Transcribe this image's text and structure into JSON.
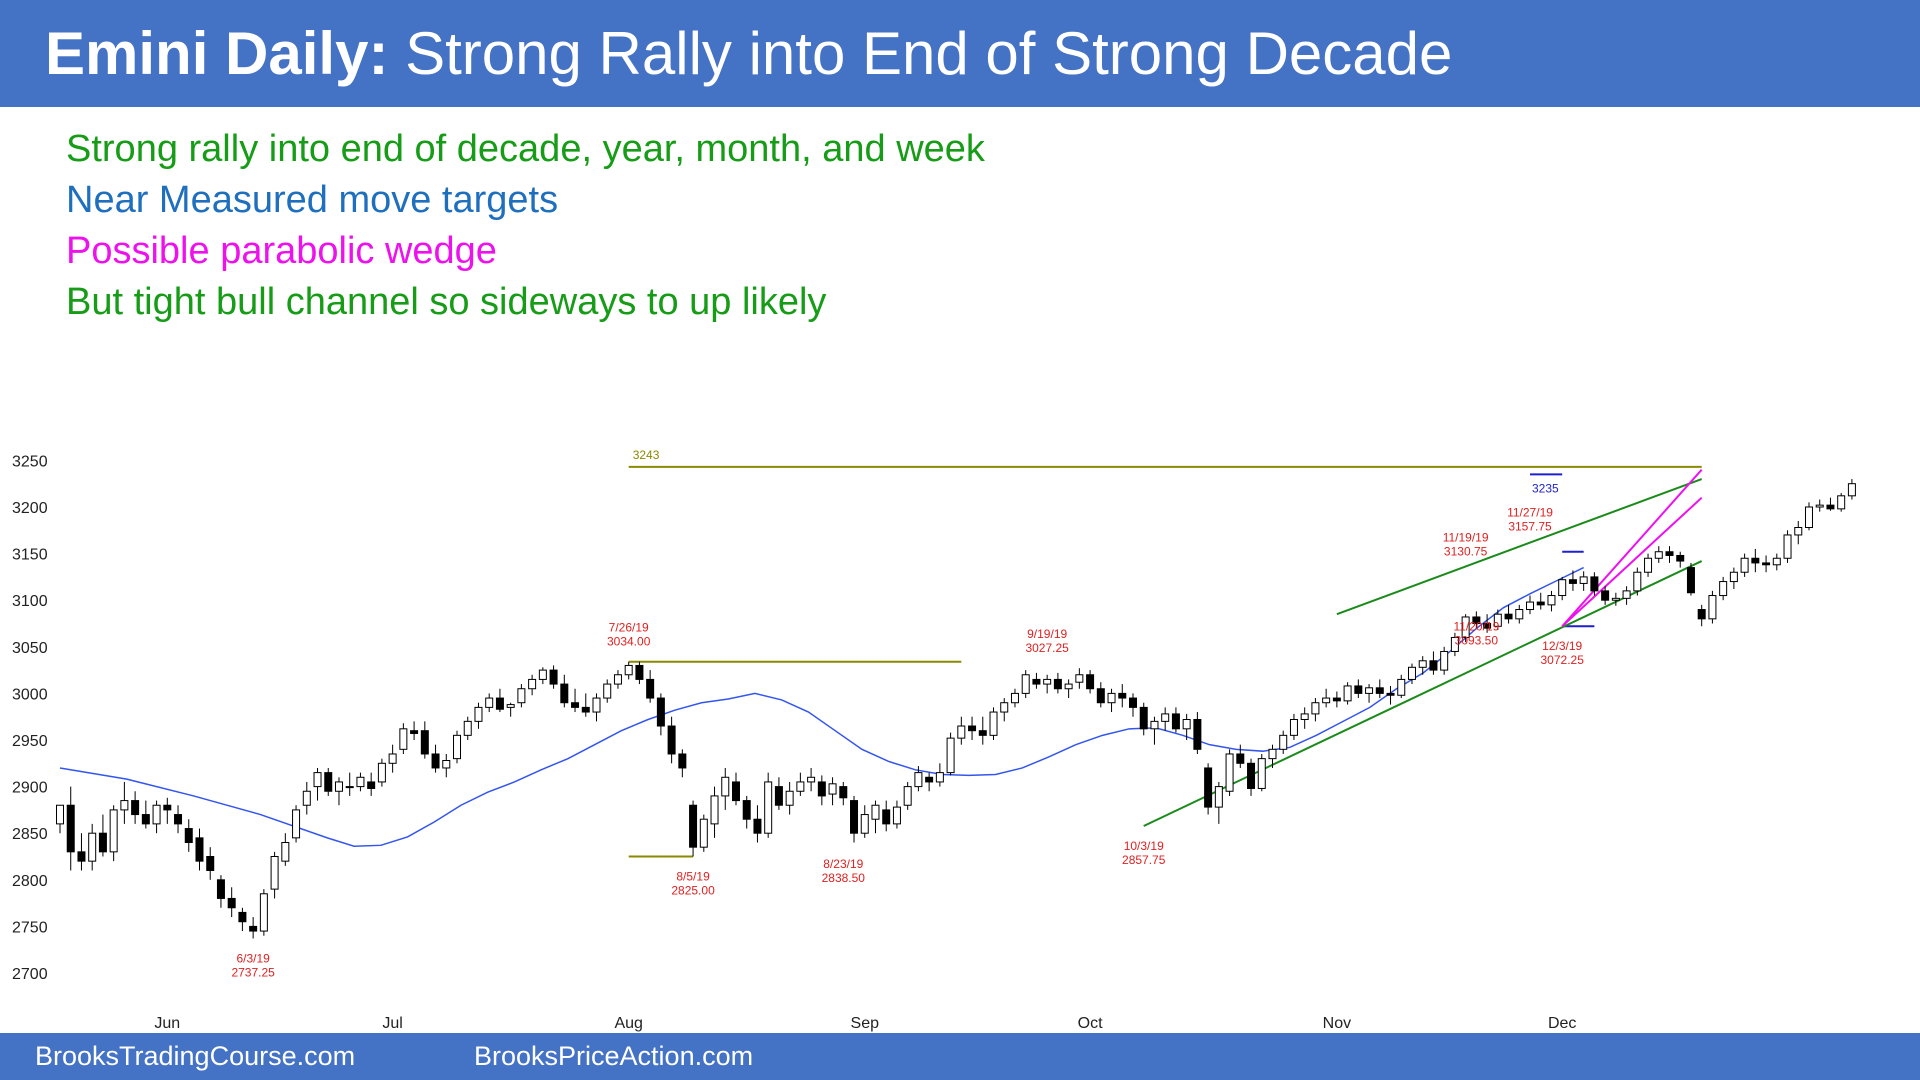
{
  "header": {
    "title_bold": "Emini Daily:",
    "title_rest": "Strong Rally into End of Strong Decade"
  },
  "bullets": [
    {
      "text": "Strong rally into end of decade, year, month, and week",
      "color": "#169c16"
    },
    {
      "text": "Near Measured move targets",
      "color": "#1f6fbf"
    },
    {
      "text": "Possible parabolic wedge",
      "color": "#ee11ee"
    },
    {
      "text": "But tight bull channel so sideways to up likely",
      "color": "#169c16"
    }
  ],
  "footer": {
    "left": "BrooksTradingCourse.com",
    "right": "BrooksPriceAction.com"
  },
  "chart_data": {
    "type": "candlestick",
    "ylim": [
      2700,
      3250
    ],
    "yticks": [
      2700,
      2750,
      2800,
      2850,
      2900,
      2950,
      3000,
      3050,
      3100,
      3150,
      3200,
      3250
    ],
    "months": [
      {
        "label": "Jun",
        "index": 10
      },
      {
        "label": "Jul",
        "index": 31
      },
      {
        "label": "Aug",
        "index": 53
      },
      {
        "label": "Sep",
        "index": 75
      },
      {
        "label": "Oct",
        "index": 96
      },
      {
        "label": "Nov",
        "index": 119
      },
      {
        "label": "Dec",
        "index": 140
      }
    ],
    "candles": [
      [
        2860,
        2880,
        2850,
        2880
      ],
      [
        2880,
        2900,
        2810,
        2830
      ],
      [
        2830,
        2850,
        2810,
        2820
      ],
      [
        2820,
        2860,
        2810,
        2850
      ],
      [
        2850,
        2870,
        2825,
        2830
      ],
      [
        2830,
        2880,
        2820,
        2875
      ],
      [
        2875,
        2905,
        2860,
        2885
      ],
      [
        2885,
        2895,
        2860,
        2870
      ],
      [
        2870,
        2885,
        2855,
        2860
      ],
      [
        2860,
        2885,
        2850,
        2880
      ],
      [
        2880,
        2888,
        2860,
        2875
      ],
      [
        2870,
        2880,
        2850,
        2860
      ],
      [
        2855,
        2865,
        2830,
        2840
      ],
      [
        2845,
        2855,
        2810,
        2820
      ],
      [
        2825,
        2835,
        2800,
        2810
      ],
      [
        2800,
        2805,
        2770,
        2780
      ],
      [
        2780,
        2792,
        2760,
        2770
      ],
      [
        2765,
        2770,
        2745,
        2755
      ],
      [
        2750,
        2760,
        2737,
        2745
      ],
      [
        2745,
        2790,
        2740,
        2785
      ],
      [
        2790,
        2830,
        2780,
        2825
      ],
      [
        2820,
        2850,
        2815,
        2840
      ],
      [
        2845,
        2880,
        2840,
        2875
      ],
      [
        2880,
        2905,
        2870,
        2895
      ],
      [
        2900,
        2920,
        2885,
        2915
      ],
      [
        2915,
        2920,
        2890,
        2895
      ],
      [
        2895,
        2910,
        2880,
        2905
      ],
      [
        2900,
        2915,
        2890,
        2900
      ],
      [
        2900,
        2915,
        2895,
        2910
      ],
      [
        2905,
        2915,
        2890,
        2898
      ],
      [
        2905,
        2930,
        2900,
        2925
      ],
      [
        2925,
        2945,
        2915,
        2935
      ],
      [
        2940,
        2968,
        2935,
        2962
      ],
      [
        2960,
        2970,
        2950,
        2957
      ],
      [
        2960,
        2970,
        2930,
        2935
      ],
      [
        2935,
        2945,
        2915,
        2920
      ],
      [
        2920,
        2935,
        2910,
        2928
      ],
      [
        2930,
        2960,
        2925,
        2955
      ],
      [
        2955,
        2975,
        2950,
        2970
      ],
      [
        2970,
        2990,
        2962,
        2985
      ],
      [
        2985,
        3000,
        2980,
        2995
      ],
      [
        2995,
        3005,
        2980,
        2983
      ],
      [
        2985,
        2990,
        2975,
        2988
      ],
      [
        2990,
        3010,
        2985,
        3005
      ],
      [
        3005,
        3020,
        2998,
        3015
      ],
      [
        3015,
        3028,
        3010,
        3025
      ],
      [
        3025,
        3030,
        3005,
        3010
      ],
      [
        3010,
        3020,
        2985,
        2990
      ],
      [
        2990,
        3005,
        2980,
        2985
      ],
      [
        2985,
        3000,
        2975,
        2980
      ],
      [
        2980,
        3000,
        2970,
        2995
      ],
      [
        2995,
        3015,
        2990,
        3010
      ],
      [
        3010,
        3025,
        3005,
        3020
      ],
      [
        3020,
        3034,
        3015,
        3030
      ],
      [
        3030,
        3034,
        3010,
        3015
      ],
      [
        3015,
        3025,
        2990,
        2995
      ],
      [
        2995,
        3000,
        2955,
        2965
      ],
      [
        2965,
        2975,
        2925,
        2935
      ],
      [
        2935,
        2940,
        2910,
        2920
      ],
      [
        2880,
        2885,
        2825,
        2835
      ],
      [
        2835,
        2870,
        2830,
        2865
      ],
      [
        2860,
        2900,
        2845,
        2890
      ],
      [
        2890,
        2920,
        2875,
        2910
      ],
      [
        2905,
        2915,
        2880,
        2885
      ],
      [
        2885,
        2890,
        2855,
        2865
      ],
      [
        2865,
        2880,
        2840,
        2850
      ],
      [
        2850,
        2915,
        2845,
        2905
      ],
      [
        2900,
        2910,
        2875,
        2880
      ],
      [
        2880,
        2905,
        2870,
        2895
      ],
      [
        2895,
        2915,
        2890,
        2905
      ],
      [
        2905,
        2920,
        2895,
        2910
      ],
      [
        2905,
        2912,
        2880,
        2890
      ],
      [
        2892,
        2910,
        2880,
        2903
      ],
      [
        2900,
        2905,
        2880,
        2888
      ],
      [
        2885,
        2890,
        2840,
        2850
      ],
      [
        2850,
        2880,
        2845,
        2870
      ],
      [
        2865,
        2885,
        2850,
        2880
      ],
      [
        2875,
        2885,
        2852,
        2860
      ],
      [
        2860,
        2885,
        2855,
        2878
      ],
      [
        2880,
        2905,
        2875,
        2900
      ],
      [
        2900,
        2922,
        2895,
        2915
      ],
      [
        2910,
        2915,
        2895,
        2905
      ],
      [
        2905,
        2925,
        2900,
        2915
      ],
      [
        2915,
        2958,
        2912,
        2952
      ],
      [
        2952,
        2975,
        2945,
        2965
      ],
      [
        2965,
        2975,
        2950,
        2960
      ],
      [
        2960,
        2975,
        2945,
        2955
      ],
      [
        2955,
        2985,
        2950,
        2980
      ],
      [
        2980,
        2995,
        2970,
        2990
      ],
      [
        2990,
        3005,
        2985,
        3000
      ],
      [
        3000,
        3025,
        2995,
        3020
      ],
      [
        3015,
        3022,
        3005,
        3010
      ],
      [
        3010,
        3020,
        3000,
        3015
      ],
      [
        3015,
        3022,
        3000,
        3005
      ],
      [
        3005,
        3015,
        2995,
        3010
      ],
      [
        3012,
        3027,
        3005,
        3020
      ],
      [
        3020,
        3025,
        3000,
        3005
      ],
      [
        3005,
        3012,
        2985,
        2990
      ],
      [
        2990,
        3005,
        2980,
        3000
      ],
      [
        3000,
        3010,
        2985,
        2995
      ],
      [
        2995,
        3000,
        2975,
        2985
      ],
      [
        2985,
        2990,
        2955,
        2962
      ],
      [
        2962,
        2975,
        2945,
        2970
      ],
      [
        2970,
        2985,
        2960,
        2978
      ],
      [
        2978,
        2985,
        2958,
        2962
      ],
      [
        2962,
        2978,
        2950,
        2972
      ],
      [
        2972,
        2980,
        2935,
        2940
      ],
      [
        2920,
        2925,
        2870,
        2878
      ],
      [
        2878,
        2905,
        2860,
        2900
      ],
      [
        2895,
        2940,
        2890,
        2935
      ],
      [
        2935,
        2945,
        2920,
        2925
      ],
      [
        2925,
        2930,
        2890,
        2898
      ],
      [
        2898,
        2935,
        2895,
        2930
      ],
      [
        2930,
        2945,
        2920,
        2940
      ],
      [
        2940,
        2960,
        2935,
        2955
      ],
      [
        2955,
        2978,
        2950,
        2972
      ],
      [
        2972,
        2985,
        2962,
        2978
      ],
      [
        2978,
        2995,
        2970,
        2990
      ],
      [
        2990,
        3005,
        2985,
        2995
      ],
      [
        2995,
        3002,
        2985,
        2992
      ],
      [
        2992,
        3012,
        2988,
        3008
      ],
      [
        3008,
        3015,
        2995,
        3000
      ],
      [
        3000,
        3010,
        2990,
        3006
      ],
      [
        3006,
        3015,
        2995,
        3000
      ],
      [
        3000,
        3008,
        2988,
        2998
      ],
      [
        2998,
        3020,
        2995,
        3015
      ],
      [
        3015,
        3032,
        3010,
        3028
      ],
      [
        3028,
        3040,
        3020,
        3035
      ],
      [
        3035,
        3045,
        3020,
        3025
      ],
      [
        3025,
        3050,
        3020,
        3045
      ],
      [
        3045,
        3065,
        3040,
        3060
      ],
      [
        3060,
        3085,
        3055,
        3082
      ],
      [
        3082,
        3088,
        3070,
        3075
      ],
      [
        3075,
        3085,
        3065,
        3070
      ],
      [
        3072,
        3090,
        3068,
        3085
      ],
      [
        3085,
        3095,
        3075,
        3080
      ],
      [
        3080,
        3095,
        3075,
        3090
      ],
      [
        3090,
        3105,
        3085,
        3098
      ],
      [
        3098,
        3108,
        3090,
        3095
      ],
      [
        3095,
        3110,
        3088,
        3105
      ],
      [
        3105,
        3125,
        3100,
        3122
      ],
      [
        3122,
        3132,
        3110,
        3118
      ],
      [
        3118,
        3131,
        3110,
        3125
      ],
      [
        3125,
        3130,
        3105,
        3110
      ],
      [
        3110,
        3115,
        3095,
        3100
      ],
      [
        3100,
        3108,
        3094,
        3102
      ],
      [
        3102,
        3115,
        3095,
        3110
      ],
      [
        3110,
        3135,
        3105,
        3130
      ],
      [
        3130,
        3150,
        3125,
        3145
      ],
      [
        3145,
        3158,
        3140,
        3152
      ],
      [
        3152,
        3158,
        3140,
        3148
      ],
      [
        3148,
        3152,
        3135,
        3142
      ],
      [
        3135,
        3140,
        3105,
        3108
      ],
      [
        3090,
        3095,
        3072,
        3080
      ],
      [
        3080,
        3110,
        3075,
        3105
      ],
      [
        3105,
        3125,
        3100,
        3120
      ],
      [
        3120,
        3135,
        3112,
        3130
      ],
      [
        3130,
        3150,
        3125,
        3145
      ],
      [
        3145,
        3155,
        3130,
        3140
      ],
      [
        3140,
        3148,
        3130,
        3138
      ],
      [
        3138,
        3150,
        3132,
        3145
      ],
      [
        3145,
        3175,
        3140,
        3170
      ],
      [
        3170,
        3185,
        3160,
        3178
      ],
      [
        3178,
        3205,
        3175,
        3200
      ],
      [
        3200,
        3208,
        3195,
        3202
      ],
      [
        3202,
        3210,
        3196,
        3198
      ],
      [
        3198,
        3215,
        3195,
        3212
      ],
      [
        3212,
        3230,
        3208,
        3225
      ]
    ],
    "ma20": [
      2920,
      2908,
      2890,
      2870,
      2845,
      2836,
      2837,
      2846,
      2862,
      2880,
      2894,
      2905,
      2918,
      2930,
      2945,
      2960,
      2972,
      2982,
      2990,
      2994,
      3000,
      2993,
      2980,
      2960,
      2940,
      2927,
      2918,
      2913,
      2912,
      2913,
      2920,
      2932,
      2945,
      2955,
      2962,
      2963,
      2955,
      2945,
      2940,
      2938,
      2942,
      2955,
      2970,
      2985,
      3005,
      3022,
      3045,
      3070,
      3092,
      3107,
      3121,
      3135
    ],
    "ma20_idx": [
      0,
      5,
      10,
      15,
      20,
      22,
      24,
      26,
      28,
      30,
      32,
      34,
      36,
      38,
      40,
      42,
      44,
      46,
      48,
      50,
      52,
      54,
      56,
      58,
      60,
      62,
      64,
      66,
      68,
      70,
      72,
      74,
      76,
      78,
      80,
      82,
      84,
      86,
      88,
      90,
      92,
      94,
      96,
      98,
      100,
      102,
      104,
      106,
      108,
      110,
      112,
      114
    ],
    "hlines": [
      {
        "y": 3243,
        "x1": 53,
        "x2": 153,
        "label": "3243"
      },
      {
        "y": 3034,
        "x1": 53,
        "x2": 84
      },
      {
        "y": 2825,
        "x1": 53,
        "x2": 59
      },
      {
        "y": 3235,
        "x1": 137,
        "x2": 140,
        "label": "3235"
      },
      {
        "y": 3152,
        "x1": 140,
        "x2": 142
      },
      {
        "y": 3072,
        "x1": 140,
        "x2": 143
      }
    ],
    "annotations": [
      {
        "date": "6/3/19",
        "value": "2737.25",
        "x": 18,
        "y": 2737.25,
        "pos": "below"
      },
      {
        "date": "7/26/19",
        "value": "3034.00",
        "x": 53,
        "y": 3034,
        "pos": "above"
      },
      {
        "date": "8/5/19",
        "value": "2825.00",
        "x": 59,
        "y": 2825,
        "pos": "below"
      },
      {
        "date": "8/23/19",
        "value": "2838.50",
        "x": 73,
        "y": 2838.5,
        "pos": "below"
      },
      {
        "date": "9/19/19",
        "value": "3027.25",
        "x": 92,
        "y": 3027.25,
        "pos": "above"
      },
      {
        "date": "10/3/19",
        "value": "2857.75",
        "x": 101,
        "y": 2857.75,
        "pos": "below"
      },
      {
        "date": "11/19/19",
        "value": "3130.75",
        "x": 131,
        "y": 3130.75,
        "pos": "above"
      },
      {
        "date": "11/20/19",
        "value": "3093.50",
        "x": 132,
        "y": 3093.5,
        "pos": "below"
      },
      {
        "date": "11/27/19",
        "value": "3157.75",
        "x": 137,
        "y": 3157.75,
        "pos": "above"
      },
      {
        "date": "12/3/19",
        "value": "3072.25",
        "x": 140,
        "y": 3072.25,
        "pos": "below"
      }
    ],
    "trendlines": [
      {
        "color": "#1a8a1a",
        "x1": 101,
        "y1": 2857.75,
        "x2": 153,
        "y2": 3142
      },
      {
        "color": "#1a8a1a",
        "x1": 119,
        "y1": 3085,
        "x2": 153,
        "y2": 3230
      },
      {
        "color": "#ee11ee",
        "x1": 140,
        "y1": 3072,
        "x2": 153,
        "y2": 3240
      },
      {
        "color": "#ee11ee",
        "x1": 140,
        "y1": 3072,
        "x2": 153,
        "y2": 3210
      }
    ]
  }
}
